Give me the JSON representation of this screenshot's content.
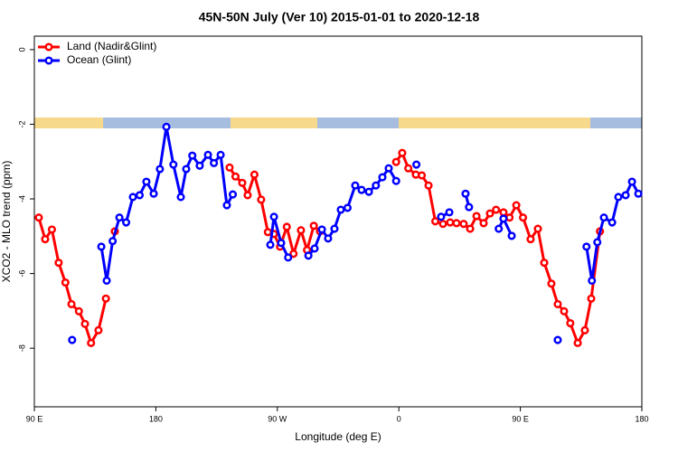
{
  "chart_data": {
    "type": "line",
    "title": "45N-50N July (Ver 10)   2015-01-01 to 2020-12-18",
    "x_label": "Longitude (deg E)",
    "y_label": "XCO2 - MLO trend (ppm)",
    "xlim": [
      90,
      540
    ],
    "ylim": [
      -9.57,
      0.36
    ],
    "xticks": [
      {
        "value": 90,
        "label": "90 E"
      },
      {
        "value": 180,
        "label": "180"
      },
      {
        "value": 270,
        "label": "90 W"
      },
      {
        "value": 360,
        "label": "0"
      },
      {
        "value": 450,
        "label": "90 E"
      },
      {
        "value": 540,
        "label": "180"
      }
    ],
    "yticks": [
      0,
      -2,
      -4,
      -6,
      -8
    ],
    "legend": "top-left",
    "series": [
      {
        "name": "Land (Nadir&Glint)",
        "color": "#ff0000",
        "x": [
          93.3,
          98,
          103,
          108,
          113,
          117.5,
          123,
          127.5,
          132,
          137.5,
          143,
          null,
          149.6,
          null,
          234.6,
          239,
          244,
          248,
          253,
          258,
          263,
          267.5,
          272,
          277,
          282,
          287.5,
          292,
          297,
          301.6,
          null,
          358,
          362.5,
          367,
          372.6,
          377,
          382,
          387,
          392.7,
          398,
          402.7,
          408,
          412.8,
          417.5,
          422.8,
          427.5,
          432,
          437.5,
          442,
          447,
          452,
          457.6,
          463,
          467.7,
          473,
          477.7,
          482.4,
          487,
          492.5,
          497.8,
          502.5,
          509
        ],
        "values": [
          -4.5,
          -5.08,
          -4.82,
          -5.71,
          -6.24,
          -6.82,
          -7.01,
          -7.35,
          -7.86,
          -7.52,
          -6.67,
          null,
          -4.87,
          null,
          -3.16,
          -3.4,
          -3.57,
          -3.9,
          -3.35,
          -4.02,
          -4.89,
          -4.94,
          -5.28,
          -4.75,
          -5.47,
          -4.84,
          -5.37,
          -4.72,
          -4.87,
          null,
          -3.01,
          -2.77,
          -3.18,
          -3.35,
          -3.37,
          -3.64,
          -4.6,
          -4.67,
          -4.63,
          -4.65,
          -4.67,
          -4.8,
          -4.46,
          -4.65,
          -4.39,
          -4.29,
          -4.36,
          -4.5,
          -4.17,
          -4.5,
          -5.08,
          -4.8,
          -5.71,
          -6.27,
          -6.82,
          -7.01,
          -7.33,
          -7.86,
          -7.52,
          -6.67,
          -4.87
        ]
      },
      {
        "name": "Ocean (Glint)",
        "color": "#0000ff",
        "x": [
          118,
          null,
          139.6,
          143.6,
          148,
          153,
          158,
          163,
          168,
          173,
          178.4,
          183,
          187.8,
          193,
          198.5,
          202.5,
          207,
          212.5,
          218.6,
          223,
          228,
          232.6,
          237,
          null,
          264.8,
          267.5,
          272.8,
          278,
          null,
          293,
          297.6,
          303,
          307.6,
          312.3,
          317,
          322,
          327.7,
          332.4,
          337.8,
          343,
          347.8,
          352.5,
          358,
          null,
          373,
          null,
          391.3,
          397.4,
          null,
          409.4,
          412,
          null,
          434,
          437.5,
          443.6,
          null,
          477.7,
          null,
          499,
          503,
          507,
          511.9,
          518,
          522.6,
          528,
          532.7,
          537.4
        ],
        "values": [
          -7.78,
          null,
          -5.28,
          -6.19,
          -5.13,
          -4.5,
          -4.63,
          -3.95,
          -3.9,
          -3.54,
          -3.86,
          -3.2,
          -2.07,
          -3.08,
          -3.95,
          -3.2,
          -2.84,
          -3.11,
          -2.82,
          -3.04,
          -2.82,
          -4.17,
          -3.88,
          null,
          -5.23,
          -4.48,
          -5.18,
          -5.57,
          null,
          -5.52,
          -5.33,
          -4.82,
          -5.06,
          -4.8,
          -4.29,
          -4.24,
          -3.64,
          -3.76,
          -3.81,
          -3.64,
          -3.42,
          -3.18,
          -3.52,
          null,
          -3.08,
          null,
          -4.48,
          -4.36,
          null,
          -3.86,
          -4.22,
          null,
          -4.8,
          -4.53,
          -4.99,
          null,
          -7.78,
          null,
          -5.28,
          -6.19,
          -5.16,
          -4.5,
          -4.63,
          -3.95,
          -3.9,
          -3.54,
          -3.86
        ]
      }
    ]
  }
}
